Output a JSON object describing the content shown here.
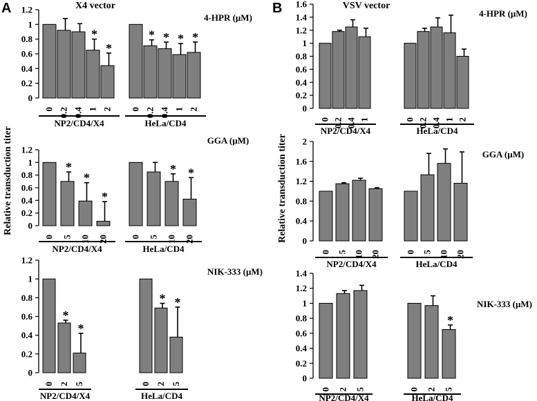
{
  "panel_letters": [
    "A",
    "B"
  ],
  "chart_data": [
    {
      "id": "A1",
      "type": "bar",
      "title": "X4 vector",
      "treatment": "4-HPR (μM)",
      "ylim": [
        0,
        1.2
      ],
      "yticks": [
        "0",
        "0.2",
        "0.4",
        "0.6",
        "0.8",
        "1",
        "1.2"
      ],
      "groups": [
        {
          "name": "NP2/CD4/X4",
          "categories": [
            "0",
            "0.2",
            "0.4",
            "1",
            "2"
          ],
          "values": [
            1.0,
            0.92,
            0.9,
            0.65,
            0.44
          ],
          "errors": [
            0,
            0.16,
            0.11,
            0.15,
            0.17
          ],
          "significant": [
            false,
            false,
            false,
            true,
            true
          ]
        },
        {
          "name": "HeLa/CD4",
          "categories": [
            "0",
            "0.2",
            "0.4",
            "1",
            "2"
          ],
          "values": [
            1.0,
            0.71,
            0.67,
            0.59,
            0.62
          ],
          "errors": [
            0,
            0.08,
            0.09,
            0.15,
            0.14
          ],
          "significant": [
            false,
            true,
            true,
            true,
            true
          ]
        }
      ]
    },
    {
      "id": "A2",
      "type": "bar",
      "title": "",
      "treatment": "GGA (μM)",
      "ylim": [
        0,
        1.2
      ],
      "yticks": [
        "0",
        "0.2",
        "0.4",
        "0.6",
        "0.8",
        "1",
        "1.2"
      ],
      "groups": [
        {
          "name": "NP2/CD4/X4",
          "categories": [
            "0",
            "5",
            "10",
            "20"
          ],
          "values": [
            1.0,
            0.7,
            0.39,
            0.07
          ],
          "errors": [
            0,
            0.15,
            0.29,
            0.31
          ],
          "significant": [
            false,
            true,
            true,
            true
          ]
        },
        {
          "name": "HeLa/CD4",
          "categories": [
            "0",
            "5",
            "10",
            "20"
          ],
          "values": [
            1.0,
            0.85,
            0.7,
            0.42
          ],
          "errors": [
            0,
            0.15,
            0.12,
            0.34
          ],
          "significant": [
            false,
            false,
            true,
            true
          ]
        }
      ]
    },
    {
      "id": "A3",
      "type": "bar",
      "title": "",
      "treatment": "NIK-333 (μM)",
      "ylim": [
        0,
        1.2
      ],
      "yticks": [
        "0",
        "0.2",
        "0.4",
        "0.6",
        "0.8",
        "1",
        "1.2"
      ],
      "groups": [
        {
          "name": "NP2/CD4/X4",
          "categories": [
            "0",
            "2",
            "5"
          ],
          "values": [
            1.0,
            0.53,
            0.21
          ],
          "errors": [
            0,
            0.03,
            0.21
          ],
          "significant": [
            false,
            true,
            true
          ]
        },
        {
          "name": "HeLa/CD4",
          "categories": [
            "0",
            "2",
            "5"
          ],
          "values": [
            1.0,
            0.69,
            0.38
          ],
          "errors": [
            0,
            0.05,
            0.32
          ],
          "significant": [
            false,
            true,
            true
          ]
        }
      ]
    },
    {
      "id": "B1",
      "type": "bar",
      "title": "VSV vector",
      "treatment": "4-HPR (μM)",
      "ylim": [
        0,
        1.6
      ],
      "yticks": [
        "0",
        "0.2",
        "0.4",
        "0.6",
        "0.8",
        "1",
        "1.2",
        "1.4",
        "1.6"
      ],
      "groups": [
        {
          "name": "NP2/CD4/X4",
          "categories": [
            "0",
            "0.2",
            "0.4",
            "1"
          ],
          "values": [
            1.0,
            1.18,
            1.25,
            1.1
          ],
          "errors": [
            0,
            0.02,
            0.11,
            0.13
          ],
          "significant": [
            false,
            false,
            false,
            false
          ]
        },
        {
          "name": "HeLa/CD4",
          "categories": [
            "0",
            "0.2",
            "0.4",
            "1",
            "2"
          ],
          "values": [
            1.0,
            1.18,
            1.25,
            1.16,
            0.8
          ],
          "errors": [
            0,
            0.05,
            0.14,
            0.27,
            0.11
          ],
          "significant": [
            false,
            false,
            false,
            false,
            false
          ]
        }
      ]
    },
    {
      "id": "B2",
      "type": "bar",
      "title": "",
      "treatment": "GGA (μM)",
      "ylim": [
        0,
        2
      ],
      "yticks": [
        "0",
        "0.4",
        "0.8",
        "1.2",
        "1.6",
        "2"
      ],
      "groups": [
        {
          "name": "NP2/CD4/X4",
          "categories": [
            "0",
            "5",
            "10",
            "20"
          ],
          "values": [
            1.0,
            1.15,
            1.22,
            1.05
          ],
          "errors": [
            0,
            0.02,
            0.04,
            0.02
          ],
          "significant": [
            false,
            false,
            false,
            false
          ]
        },
        {
          "name": "HeLa/CD4",
          "categories": [
            "0",
            "5",
            "10",
            "20"
          ],
          "values": [
            1.0,
            1.33,
            1.56,
            1.16
          ],
          "errors": [
            0,
            0.43,
            0.29,
            0.63
          ],
          "significant": [
            false,
            false,
            false,
            false
          ]
        }
      ]
    },
    {
      "id": "B3",
      "type": "bar",
      "title": "",
      "treatment": "NIK-333 (μM)",
      "ylim": [
        0,
        1.4
      ],
      "yticks": [
        "0",
        "0.2",
        "0.4",
        "0.6",
        "0.8",
        "1",
        "1.2",
        "1.4"
      ],
      "groups": [
        {
          "name": "NP2/CD4/X4",
          "categories": [
            "0",
            "2",
            "5"
          ],
          "values": [
            1.0,
            1.13,
            1.17
          ],
          "errors": [
            0,
            0.04,
            0.07
          ],
          "significant": [
            false,
            false,
            false
          ]
        },
        {
          "name": "HeLa/CD4",
          "categories": [
            "0",
            "2",
            "5"
          ],
          "values": [
            1.0,
            0.97,
            0.65
          ],
          "errors": [
            0,
            0.13,
            0.06
          ],
          "significant": [
            false,
            false,
            true
          ]
        }
      ]
    }
  ],
  "ylabel": "Relative transduction titer",
  "sig_marker": "*"
}
